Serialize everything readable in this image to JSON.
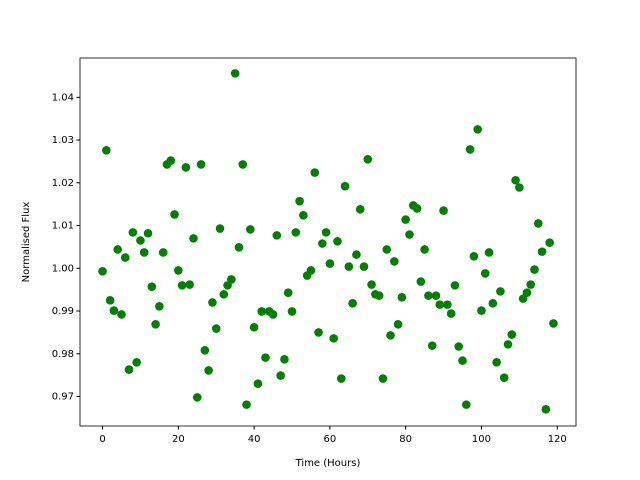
{
  "chart_data": {
    "type": "scatter",
    "xlabel": "Time (Hours)",
    "ylabel": "Normalised Flux",
    "color": "#008000",
    "x": [
      0,
      1,
      2,
      3,
      4,
      5,
      6,
      7,
      8,
      9,
      10,
      11,
      12,
      13,
      14,
      15,
      16,
      17,
      18,
      19,
      20,
      21,
      22,
      23,
      24,
      25,
      26,
      27,
      28,
      29,
      30,
      31,
      32,
      33,
      34,
      35,
      36,
      37,
      38,
      39,
      40,
      41,
      42,
      43,
      44,
      45,
      46,
      47,
      48,
      49,
      50,
      51,
      52,
      53,
      54,
      55,
      56,
      57,
      58,
      59,
      60,
      61,
      62,
      63,
      64,
      65,
      66,
      67,
      68,
      69,
      70,
      71,
      72,
      73,
      74,
      75,
      76,
      77,
      78,
      79,
      80,
      81,
      82,
      83,
      84,
      85,
      86,
      87,
      88,
      89,
      90,
      91,
      92,
      93,
      94,
      95,
      96,
      97,
      98,
      99,
      100,
      101,
      102,
      103,
      104,
      105,
      106,
      107,
      108,
      109,
      110,
      111,
      112,
      113,
      114,
      115,
      116,
      117,
      118,
      119
    ],
    "y": [
      0.9993,
      1.0276,
      0.9925,
      0.9901,
      1.0044,
      0.9892,
      1.0025,
      0.9763,
      1.0084,
      0.978,
      1.0065,
      1.0037,
      1.0082,
      0.9957,
      0.9869,
      0.9911,
      1.0037,
      1.0243,
      1.0252,
      1.0126,
      0.9995,
      0.996,
      1.0236,
      0.9962,
      1.007,
      0.9698,
      1.0243,
      0.9808,
      0.9761,
      0.992,
      0.9859,
      1.0093,
      0.9939,
      0.996,
      0.9974,
      1.0456,
      1.0049,
      1.0243,
      0.9681,
      1.0091,
      0.9862,
      0.973,
      0.9899,
      0.9791,
      0.9899,
      0.9892,
      1.0077,
      0.9749,
      0.9787,
      0.9943,
      0.9899,
      1.0084,
      1.0157,
      1.0124,
      0.9983,
      0.9995,
      1.0224,
      0.985,
      1.0058,
      1.0084,
      1.0011,
      0.9836,
      1.0063,
      0.9742,
      1.0192,
      1.0004,
      0.9918,
      1.0032,
      1.0138,
      1.0004,
      1.0255,
      0.9962,
      0.9939,
      0.9936,
      0.9742,
      1.0044,
      0.9843,
      1.0016,
      0.9869,
      0.9932,
      1.0114,
      1.0079,
      1.0147,
      1.014,
      0.9969,
      1.0044,
      0.9936,
      0.9819,
      0.9936,
      0.9915,
      1.0135,
      0.9915,
      0.9894,
      0.996,
      0.9817,
      0.9784,
      0.9681,
      1.0278,
      1.0028,
      1.0325,
      0.9901,
      0.9988,
      1.0037,
      0.9918,
      0.978,
      0.9946,
      0.9744,
      0.9822,
      0.9845,
      1.0206,
      1.0189,
      0.9929,
      0.9943,
      0.9962,
      0.9997,
      1.0105,
      1.0039,
      0.967,
      1.006,
      0.9871
    ],
    "xlim": [
      -5.95,
      124.95
    ],
    "ylim": [
      0.9631,
      1.0492
    ],
    "xticks": [
      0,
      20,
      40,
      60,
      80,
      100,
      120
    ],
    "yticks": [
      0.97,
      0.98,
      0.99,
      {
        "value": 1,
        "label": "1.00"
      },
      1.01,
      1.02,
      1.03,
      1.04
    ]
  }
}
